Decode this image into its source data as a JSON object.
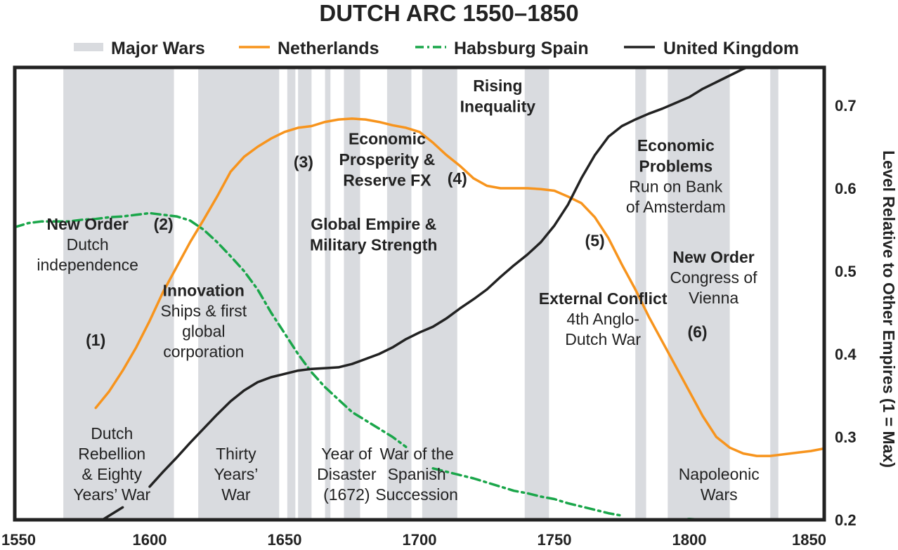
{
  "chart_data": {
    "type": "line",
    "title": "DUTCH ARC 1550–1850",
    "ylabel": "Level Relative to Other Empires (1 = Max)",
    "xlabel": "",
    "xlim": [
      1550,
      1850
    ],
    "ylim": [
      0.2,
      0.75
    ],
    "x_ticks": [
      "1550",
      "1600",
      "1650",
      "1700",
      "1750",
      "1800",
      "1850"
    ],
    "y_ticks": [
      "0.2",
      "0.3",
      "0.4",
      "0.5",
      "0.6",
      "0.7"
    ],
    "legend": [
      "Major Wars",
      "Netherlands",
      "Habsburg Spain",
      "United Kingdom"
    ],
    "legend_position": "top",
    "colors": {
      "netherlands": "#f7941d",
      "spain": "#1aa64a",
      "uk": "#222222",
      "wars": "#d9dbdf"
    },
    "wars": [
      [
        1568,
        1609
      ],
      [
        1618,
        1648
      ],
      [
        1651,
        1654
      ],
      [
        1655,
        1660
      ],
      [
        1665,
        1667
      ],
      [
        1672,
        1678
      ],
      [
        1688,
        1697
      ],
      [
        1701,
        1714
      ],
      [
        1739,
        1748
      ],
      [
        1780,
        1784
      ],
      [
        1792,
        1815
      ],
      [
        1830,
        1833
      ]
    ],
    "war_labels": [
      {
        "lines": [
          "Dutch",
          "Rebellion",
          "& Eighty",
          "Years’ War"
        ],
        "x": 1586
      },
      {
        "lines": [
          "Thirty",
          "Years’",
          "War"
        ],
        "x": 1632
      },
      {
        "lines": [
          "Year of",
          "Disaster",
          "(1672)"
        ],
        "x": 1673
      },
      {
        "lines": [
          "War of the",
          "Spanish",
          "Succession"
        ],
        "x": 1699
      },
      {
        "lines": [
          "Napoleonic",
          "Wars"
        ],
        "x": 1811
      }
    ],
    "annotations": [
      {
        "head": "New Order",
        "num": "(2)",
        "lines": [
          "Dutch",
          "independence"
        ],
        "x": 1577,
        "y": 0.55
      },
      {
        "num": "(1)",
        "lines": [],
        "x": 1580,
        "y": 0.41
      },
      {
        "head": "Innovation",
        "lines": [
          "Ships & first",
          "global",
          "corporation"
        ],
        "x": 1620,
        "y": 0.47
      },
      {
        "head": "Global Empire &",
        "lines": [],
        "x": 1683,
        "y": 0.55
      },
      {
        "head": "Military Strength",
        "lines": [],
        "x": 1683,
        "y": 0.525
      },
      {
        "num": "(3)",
        "lines": [],
        "x": 1657,
        "y": 0.625
      },
      {
        "head": "Economic",
        "lines": [],
        "x": 1688,
        "y": 0.653
      },
      {
        "head": "Prosperity &",
        "lines": [],
        "x": 1688,
        "y": 0.628
      },
      {
        "head": "Reserve FX",
        "lines": [],
        "x": 1688,
        "y": 0.603
      },
      {
        "num": "(4)",
        "lines": [],
        "x": 1714,
        "y": 0.605
      },
      {
        "head": "Rising",
        "lines": [],
        "x": 1729,
        "y": 0.717
      },
      {
        "head": "Inequality",
        "lines": [],
        "x": 1729,
        "y": 0.692
      },
      {
        "head": "External Conflict",
        "lines": [
          "4th Anglo-",
          "Dutch War"
        ],
        "x": 1768,
        "y": 0.46
      },
      {
        "num": "(5)",
        "lines": [],
        "x": 1765,
        "y": 0.53
      },
      {
        "head": "Economic",
        "lines": [],
        "x": 1795,
        "y": 0.645
      },
      {
        "head": "Problems",
        "lines": [
          "Run on Bank",
          "of Amsterdam"
        ],
        "x": 1795,
        "y": 0.62
      },
      {
        "head": "New Order",
        "lines": [
          "Congress of",
          "Vienna"
        ],
        "x": 1809,
        "y": 0.51
      },
      {
        "num": "(6)",
        "lines": [],
        "x": 1803,
        "y": 0.42
      }
    ],
    "series": [
      {
        "name": "Netherlands",
        "style": "solid",
        "x": [
          1580,
          1585,
          1590,
          1595,
          1600,
          1605,
          1610,
          1615,
          1620,
          1625,
          1630,
          1635,
          1640,
          1645,
          1650,
          1655,
          1660,
          1665,
          1670,
          1675,
          1680,
          1685,
          1690,
          1695,
          1700,
          1705,
          1710,
          1715,
          1720,
          1725,
          1730,
          1735,
          1740,
          1745,
          1750,
          1755,
          1760,
          1765,
          1770,
          1775,
          1780,
          1785,
          1790,
          1795,
          1800,
          1805,
          1810,
          1815,
          1820,
          1825,
          1830,
          1835,
          1840,
          1845,
          1850
        ],
        "y": [
          0.335,
          0.355,
          0.38,
          0.408,
          0.44,
          0.475,
          0.505,
          0.535,
          0.562,
          0.59,
          0.62,
          0.638,
          0.65,
          0.66,
          0.668,
          0.673,
          0.675,
          0.68,
          0.683,
          0.684,
          0.683,
          0.68,
          0.676,
          0.673,
          0.668,
          0.655,
          0.64,
          0.627,
          0.612,
          0.603,
          0.6,
          0.6,
          0.6,
          0.599,
          0.597,
          0.59,
          0.582,
          0.565,
          0.54,
          0.508,
          0.478,
          0.445,
          0.415,
          0.385,
          0.355,
          0.325,
          0.3,
          0.287,
          0.28,
          0.277,
          0.277,
          0.279,
          0.281,
          0.283,
          0.286
        ]
      },
      {
        "name": "Habsburg Spain",
        "style": "dashdot",
        "x": [
          1550,
          1555,
          1560,
          1565,
          1570,
          1575,
          1580,
          1585,
          1590,
          1595,
          1600,
          1605,
          1610,
          1615,
          1620,
          1625,
          1630,
          1635,
          1640,
          1645,
          1650,
          1655,
          1660,
          1665,
          1670,
          1675,
          1680,
          1685,
          1690,
          1695,
          1700,
          1705,
          1710,
          1715,
          1720,
          1725,
          1730,
          1735,
          1740,
          1745,
          1750,
          1755,
          1760,
          1765,
          1770,
          1775,
          1780,
          1785,
          1790,
          1795,
          1800,
          1805,
          1810
        ],
        "y": [
          0.553,
          0.558,
          0.56,
          0.56,
          0.56,
          0.562,
          0.563,
          0.565,
          0.566,
          0.568,
          0.57,
          0.568,
          0.566,
          0.561,
          0.55,
          0.535,
          0.518,
          0.5,
          0.478,
          0.45,
          0.425,
          0.4,
          0.378,
          0.36,
          0.345,
          0.33,
          0.32,
          0.31,
          0.3,
          0.288,
          0.27,
          0.262,
          0.258,
          0.254,
          0.25,
          0.245,
          0.24,
          0.235,
          0.232,
          0.228,
          0.225,
          0.22,
          0.216,
          0.212,
          0.208,
          0.205,
          0.2,
          0.197,
          0.198,
          0.2,
          0.201,
          0.2,
          0.198
        ]
      },
      {
        "name": "United Kingdom",
        "style": "solid",
        "x": [
          1570,
          1575,
          1580,
          1585,
          1590,
          1595,
          1600,
          1605,
          1610,
          1615,
          1620,
          1625,
          1630,
          1635,
          1640,
          1645,
          1650,
          1655,
          1660,
          1665,
          1670,
          1675,
          1680,
          1685,
          1690,
          1695,
          1700,
          1705,
          1710,
          1715,
          1720,
          1725,
          1730,
          1735,
          1740,
          1745,
          1750,
          1755,
          1760,
          1765,
          1770,
          1775,
          1780,
          1785,
          1790,
          1795,
          1800,
          1805,
          1810,
          1815,
          1820,
          1825,
          1830
        ],
        "y": [
          0.17,
          0.185,
          0.195,
          0.205,
          0.215,
          0.225,
          0.24,
          0.258,
          0.275,
          0.293,
          0.31,
          0.327,
          0.343,
          0.356,
          0.366,
          0.372,
          0.376,
          0.38,
          0.382,
          0.383,
          0.384,
          0.388,
          0.394,
          0.4,
          0.408,
          0.418,
          0.426,
          0.433,
          0.443,
          0.455,
          0.466,
          0.478,
          0.493,
          0.507,
          0.52,
          0.535,
          0.555,
          0.58,
          0.612,
          0.64,
          0.662,
          0.675,
          0.683,
          0.69,
          0.696,
          0.703,
          0.71,
          0.72,
          0.728,
          0.736,
          0.744,
          0.75,
          0.755
        ]
      }
    ]
  }
}
